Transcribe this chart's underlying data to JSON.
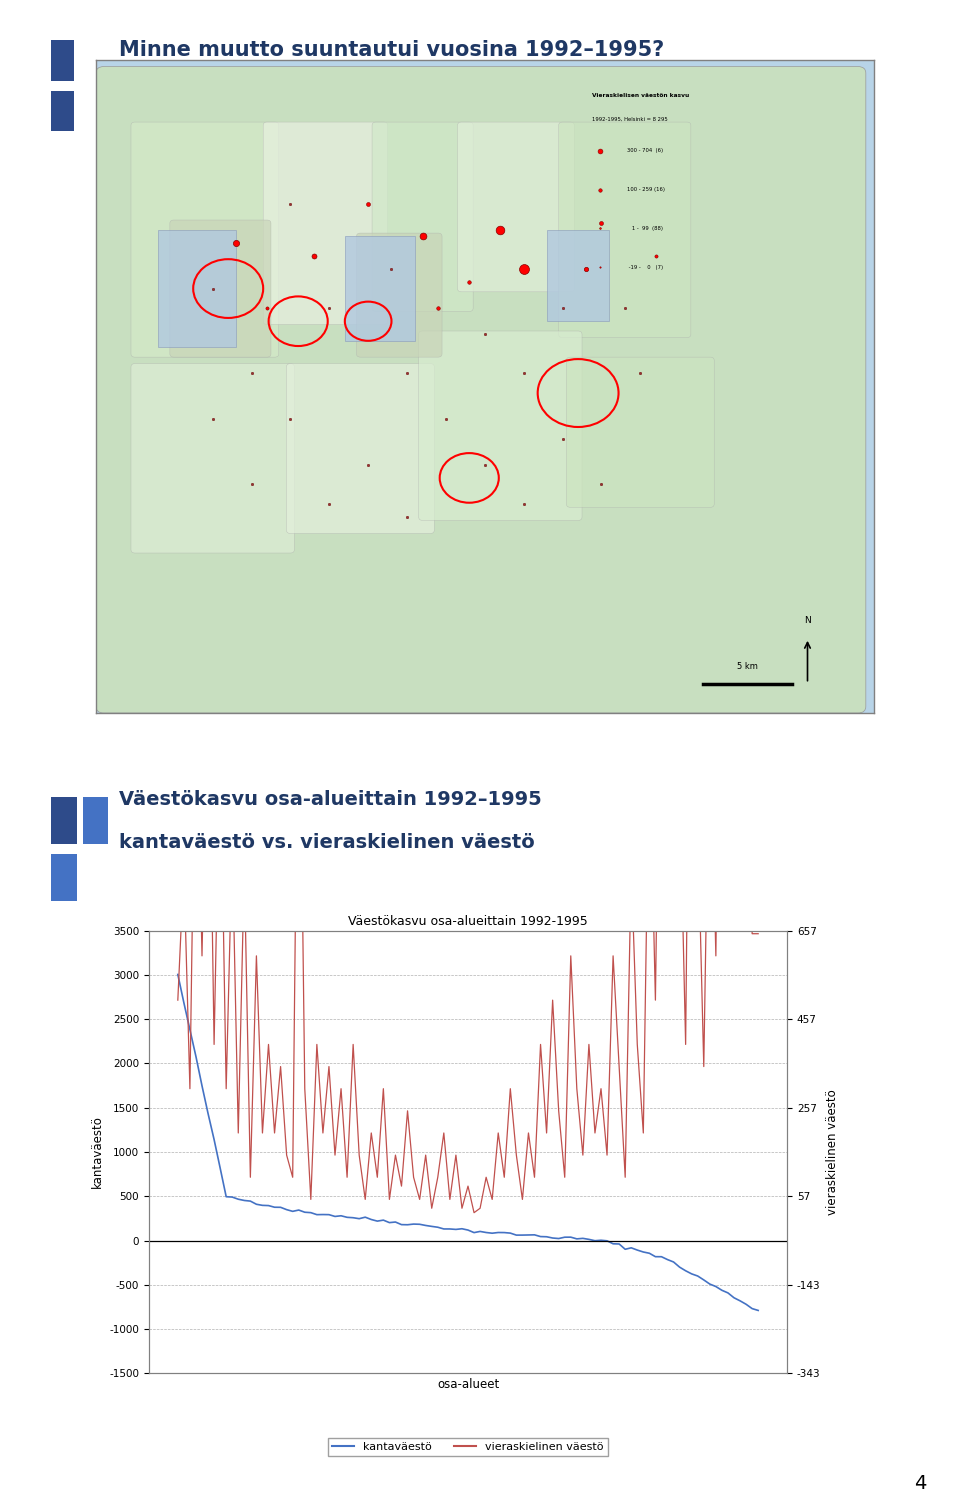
{
  "title_top": "Minne muutto suuntautui vuosina 1992–1995?",
  "title_bottom1": "Väestökasvu osa-alueittain 1992–1995",
  "title_bottom2": "kantaväestö vs. vieraskielinen väestö",
  "chart_title": "Väestökasvu osa-alueittain 1992-1995",
  "xlabel": "osa-alueet",
  "ylabel_left": "kantaväestö",
  "ylabel_right": "vieraskielinen väestö",
  "legend1": "kantaväestö",
  "legend2": "vieraskielinen väestö",
  "ylim_left": [
    -1500,
    3500
  ],
  "ylim_right": [
    -343,
    657
  ],
  "yticks_left": [
    -1500,
    -1000,
    -500,
    0,
    500,
    1000,
    1500,
    2000,
    2500,
    3000,
    3500
  ],
  "yticks_right": [
    -343,
    -143,
    57,
    257,
    457,
    657
  ],
  "line_color_blue": "#4472C4",
  "line_color_red": "#C0504D",
  "background_color": "#FFFFFF",
  "page_background": "#FFFFFF",
  "title_color": "#1F3864",
  "page_number": "4",
  "n_points": 97,
  "top_border_color": "#888888",
  "bottom_border_color": "#888888"
}
